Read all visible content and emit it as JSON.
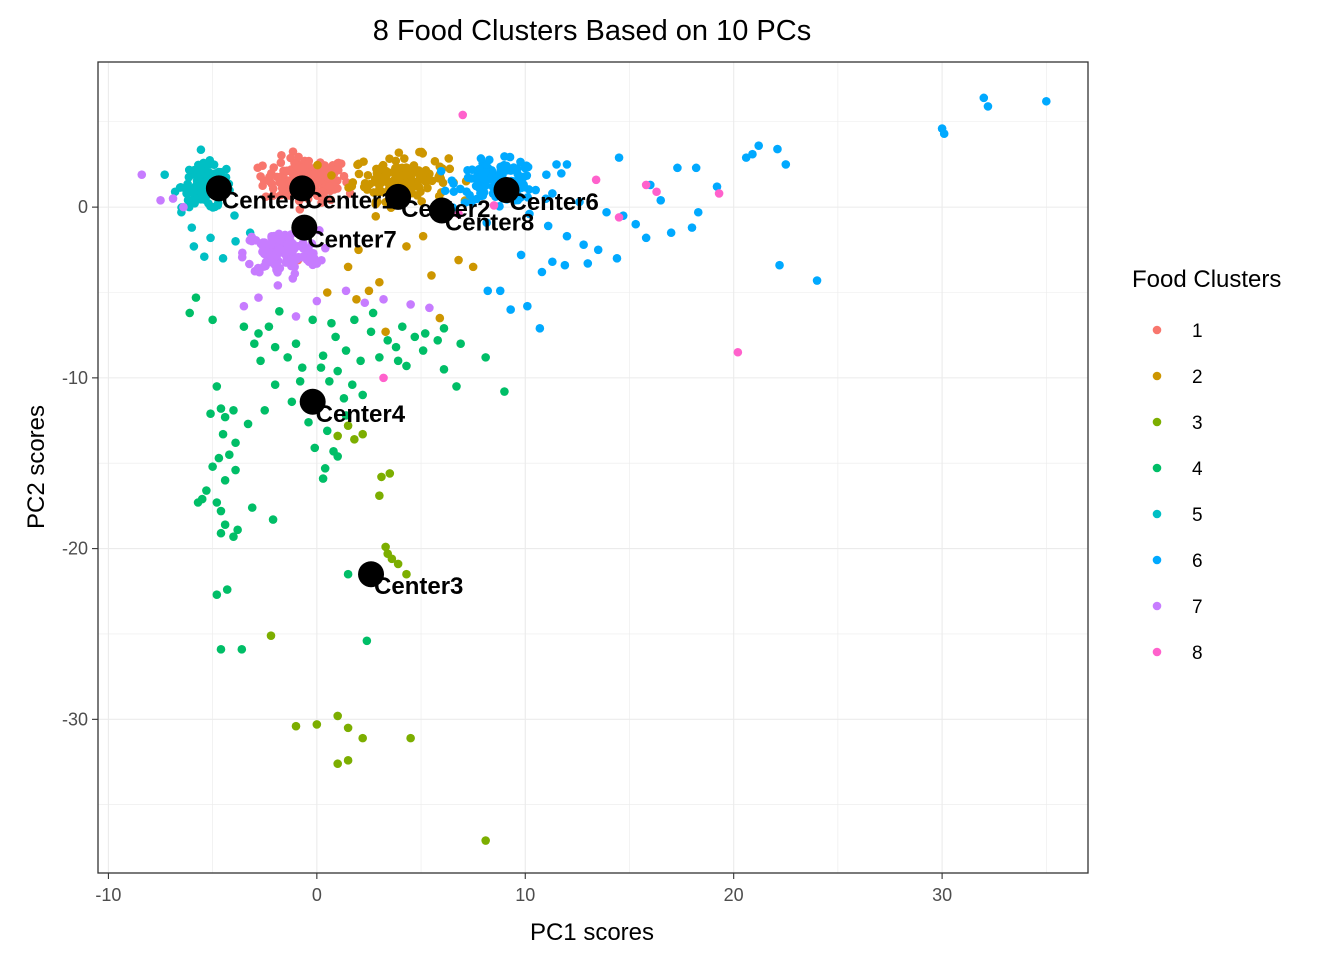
{
  "chart_data": {
    "type": "scatter",
    "title": "8 Food Clusters Based on 10 PCs",
    "xlabel": "PC1 scores",
    "ylabel": "PC2 scores",
    "xlim": [
      -10.5,
      37
    ],
    "ylim": [
      -39,
      8.5
    ],
    "x_ticks": [
      -10,
      0,
      10,
      20,
      30
    ],
    "y_ticks": [
      -30,
      -20,
      -10,
      0
    ],
    "x_tick_labels": [
      "-10",
      "0",
      "10",
      "20",
      "30"
    ],
    "y_tick_labels": [
      "-30",
      "-20",
      "-10",
      "0"
    ],
    "grid": true,
    "legend": {
      "title": "Food Clusters",
      "placement": "right",
      "entries": [
        {
          "label": "1",
          "color": "#F8766D"
        },
        {
          "label": "2",
          "color": "#CD9600"
        },
        {
          "label": "3",
          "color": "#7CAE00"
        },
        {
          "label": "4",
          "color": "#00BE67"
        },
        {
          "label": "5",
          "color": "#00BFC4"
        },
        {
          "label": "6",
          "color": "#00A9FF"
        },
        {
          "label": "7",
          "color": "#C77CFF"
        },
        {
          "label": "8",
          "color": "#FF61CC"
        }
      ]
    },
    "centers": [
      {
        "label": "Center1",
        "x": -0.7,
        "y": 1.1
      },
      {
        "label": "Center2",
        "x": 3.9,
        "y": 0.6
      },
      {
        "label": "Center3",
        "x": 2.6,
        "y": -21.5
      },
      {
        "label": "Center4",
        "x": -0.2,
        "y": -11.4
      },
      {
        "label": "Center5",
        "x": -4.7,
        "y": 1.1
      },
      {
        "label": "Center6",
        "x": 9.1,
        "y": 1.0
      },
      {
        "label": "Center7",
        "x": -0.6,
        "y": -1.2
      },
      {
        "label": "Center8",
        "x": 6.0,
        "y": -0.2
      }
    ],
    "series": [
      {
        "name": "1",
        "color": "#F8766D",
        "cluster": {
          "cx": -0.5,
          "cy": 1.6,
          "sx": 1.7,
          "sy": 1.1,
          "n": 140
        },
        "points": [
          [
            -2.7,
            1.8
          ],
          [
            1.6,
            0.8
          ],
          [
            -0.9,
            -3.1
          ]
        ]
      },
      {
        "name": "2",
        "color": "#CD9600",
        "cluster": {
          "cx": 4.0,
          "cy": 1.7,
          "sx": 1.9,
          "sy": 1.1,
          "n": 150
        },
        "points": [
          [
            1.5,
            -3.5
          ],
          [
            2.5,
            -4.9
          ],
          [
            3.3,
            -7.3
          ],
          [
            5.5,
            -4.0
          ],
          [
            7.5,
            -3.5
          ],
          [
            4.3,
            -2.3
          ],
          [
            6.8,
            -3.1
          ],
          [
            1.9,
            -5.4
          ],
          [
            3.0,
            -4.4
          ],
          [
            5.9,
            -6.5
          ],
          [
            0.5,
            -5.0
          ],
          [
            2.0,
            -2.5
          ],
          [
            5.1,
            -1.7
          ]
        ]
      },
      {
        "name": "3",
        "color": "#7CAE00",
        "points": [
          [
            1.5,
            -12.8
          ],
          [
            1.0,
            -13.4
          ],
          [
            1.8,
            -13.6
          ],
          [
            2.2,
            -13.3
          ],
          [
            3.1,
            -15.8
          ],
          [
            3.5,
            -15.6
          ],
          [
            3.0,
            -16.9
          ],
          [
            3.3,
            -19.9
          ],
          [
            3.4,
            -20.3
          ],
          [
            3.6,
            -20.6
          ],
          [
            3.9,
            -20.9
          ],
          [
            4.3,
            -21.5
          ],
          [
            -2.2,
            -25.1
          ],
          [
            1.0,
            -29.8
          ],
          [
            1.5,
            -30.5
          ],
          [
            0.0,
            -30.3
          ],
          [
            -1.0,
            -30.4
          ],
          [
            2.2,
            -31.1
          ],
          [
            4.5,
            -31.1
          ],
          [
            1.5,
            -32.4
          ],
          [
            1.0,
            -32.6
          ],
          [
            8.1,
            -37.1
          ]
        ]
      },
      {
        "name": "4",
        "color": "#00BE67",
        "points": [
          [
            -4.8,
            -10.5
          ],
          [
            -4.6,
            -11.8
          ],
          [
            -4.4,
            -12.3
          ],
          [
            -5.1,
            -12.1
          ],
          [
            -4.5,
            -13.3
          ],
          [
            -3.9,
            -13.8
          ],
          [
            -4.2,
            -14.5
          ],
          [
            -4.7,
            -14.7
          ],
          [
            -5.0,
            -15.2
          ],
          [
            -5.3,
            -16.6
          ],
          [
            -4.4,
            -16.0
          ],
          [
            -3.9,
            -15.4
          ],
          [
            -4.8,
            -17.3
          ],
          [
            -5.5,
            -17.1
          ],
          [
            -5.7,
            -17.3
          ],
          [
            -4.6,
            -17.8
          ],
          [
            -4.4,
            -18.6
          ],
          [
            -3.8,
            -18.9
          ],
          [
            -2.1,
            -18.3
          ],
          [
            -3.1,
            -17.6
          ],
          [
            -4.0,
            -11.9
          ],
          [
            -3.3,
            -12.7
          ],
          [
            -2.5,
            -11.9
          ],
          [
            -2.0,
            -10.4
          ],
          [
            -1.2,
            -11.4
          ],
          [
            -0.8,
            -10.2
          ],
          [
            0.2,
            -9.4
          ],
          [
            1.0,
            -9.6
          ],
          [
            0.6,
            -10.2
          ],
          [
            1.7,
            -10.4
          ],
          [
            1.3,
            -11.2
          ],
          [
            -0.4,
            -12.6
          ],
          [
            0.5,
            -13.1
          ],
          [
            -0.1,
            -14.1
          ],
          [
            0.8,
            -14.3
          ],
          [
            1.0,
            -14.6
          ],
          [
            0.4,
            -15.3
          ],
          [
            0.3,
            -15.9
          ],
          [
            -4.6,
            -19.1
          ],
          [
            -4.0,
            -19.3
          ],
          [
            -4.8,
            -22.7
          ],
          [
            -4.3,
            -22.4
          ],
          [
            -4.6,
            -25.9
          ],
          [
            -3.6,
            -25.9
          ],
          [
            2.4,
            -25.4
          ],
          [
            1.5,
            -21.5
          ],
          [
            -5.8,
            -5.3
          ],
          [
            -6.1,
            -6.2
          ],
          [
            -5.0,
            -6.6
          ],
          [
            -3.5,
            -7.0
          ],
          [
            -2.3,
            -7.0
          ],
          [
            -2.8,
            -7.4
          ],
          [
            -2.0,
            -8.2
          ],
          [
            -1.0,
            -8.0
          ],
          [
            0.3,
            -8.7
          ],
          [
            1.4,
            -8.4
          ],
          [
            0.9,
            -7.6
          ],
          [
            2.6,
            -7.3
          ],
          [
            3.8,
            -8.2
          ],
          [
            4.7,
            -7.6
          ],
          [
            5.8,
            -7.8
          ],
          [
            6.9,
            -8.0
          ],
          [
            4.3,
            -9.3
          ],
          [
            5.1,
            -8.4
          ],
          [
            4.1,
            -7.0
          ],
          [
            5.2,
            -7.4
          ],
          [
            6.1,
            -7.1
          ],
          [
            3.0,
            -8.8
          ],
          [
            2.1,
            -9.0
          ],
          [
            -1.8,
            -6.1
          ],
          [
            -0.2,
            -6.6
          ],
          [
            0.7,
            -6.8
          ],
          [
            1.8,
            -6.6
          ],
          [
            2.7,
            -6.2
          ],
          [
            3.4,
            -7.8
          ],
          [
            3.9,
            -9.0
          ],
          [
            8.1,
            -8.8
          ],
          [
            9.0,
            -10.8
          ],
          [
            6.7,
            -10.5
          ],
          [
            6.1,
            -9.5
          ],
          [
            2.2,
            -11.0
          ],
          [
            1.4,
            -12.2
          ],
          [
            -0.7,
            -9.4
          ],
          [
            -2.7,
            -9.0
          ],
          [
            -3.0,
            -8.0
          ],
          [
            -1.4,
            -8.8
          ]
        ]
      },
      {
        "name": "5",
        "color": "#00BFC4",
        "cluster": {
          "cx": -5.3,
          "cy": 1.2,
          "sx": 1.0,
          "sy": 1.1,
          "n": 120
        },
        "points": [
          [
            -6.8,
            0.9
          ],
          [
            -7.3,
            1.9
          ],
          [
            -6.5,
            -0.3
          ],
          [
            -5.1,
            -1.8
          ],
          [
            -5.9,
            -2.3
          ],
          [
            -4.5,
            -3.0
          ],
          [
            -3.9,
            -2.0
          ],
          [
            -5.4,
            -2.9
          ],
          [
            -6.0,
            -1.2
          ],
          [
            -3.2,
            -1.5
          ]
        ]
      },
      {
        "name": "6",
        "color": "#00A9FF",
        "cluster": {
          "cx": 8.7,
          "cy": 1.5,
          "sx": 1.6,
          "sy": 1.0,
          "n": 130
        },
        "points": [
          [
            11.5,
            2.5
          ],
          [
            12.0,
            2.5
          ],
          [
            14.5,
            2.9
          ],
          [
            16.0,
            1.3
          ],
          [
            17.3,
            2.3
          ],
          [
            18.2,
            2.3
          ],
          [
            19.2,
            1.2
          ],
          [
            20.6,
            2.9
          ],
          [
            20.9,
            3.1
          ],
          [
            21.2,
            3.6
          ],
          [
            22.1,
            3.4
          ],
          [
            22.5,
            2.5
          ],
          [
            10.5,
            1.0
          ],
          [
            11.3,
            0.8
          ],
          [
            12.6,
            0.3
          ],
          [
            13.9,
            -0.3
          ],
          [
            14.7,
            -0.5
          ],
          [
            15.3,
            -1.0
          ],
          [
            15.8,
            -1.8
          ],
          [
            17.0,
            -1.5
          ],
          [
            18.0,
            -1.2
          ],
          [
            10.2,
            -0.4
          ],
          [
            11.1,
            -1.1
          ],
          [
            12.0,
            -1.7
          ],
          [
            12.8,
            -2.2
          ],
          [
            13.5,
            -2.5
          ],
          [
            14.4,
            -3.0
          ],
          [
            11.3,
            -3.2
          ],
          [
            10.8,
            -3.8
          ],
          [
            11.9,
            -3.4
          ],
          [
            8.2,
            -4.9
          ],
          [
            8.8,
            -4.9
          ],
          [
            9.3,
            -6.0
          ],
          [
            10.1,
            -5.8
          ],
          [
            10.7,
            -7.1
          ],
          [
            9.8,
            -2.8
          ],
          [
            13.0,
            -3.3
          ],
          [
            16.5,
            0.4
          ],
          [
            18.3,
            -0.3
          ],
          [
            22.2,
            -3.4
          ],
          [
            24.0,
            -4.3
          ],
          [
            30.0,
            4.6
          ],
          [
            30.1,
            4.3
          ],
          [
            32.0,
            6.4
          ],
          [
            32.2,
            5.9
          ],
          [
            35.0,
            6.2
          ]
        ]
      },
      {
        "name": "7",
        "color": "#C77CFF",
        "cluster": {
          "cx": -1.7,
          "cy": -2.7,
          "sx": 1.5,
          "sy": 1.1,
          "n": 120
        },
        "points": [
          [
            -8.4,
            1.9
          ],
          [
            -7.5,
            0.4
          ],
          [
            -6.9,
            0.5
          ],
          [
            -6.4,
            0.0
          ],
          [
            -2.8,
            -5.3
          ],
          [
            -1.0,
            -6.4
          ],
          [
            0.0,
            -5.5
          ],
          [
            2.3,
            -5.6
          ],
          [
            3.2,
            -5.4
          ],
          [
            4.5,
            -5.7
          ],
          [
            5.4,
            -5.9
          ],
          [
            -3.5,
            -5.8
          ],
          [
            1.4,
            -4.9
          ]
        ]
      },
      {
        "name": "8",
        "color": "#FF61CC",
        "points": [
          [
            7.0,
            5.4
          ],
          [
            13.4,
            1.6
          ],
          [
            15.8,
            1.3
          ],
          [
            16.3,
            0.9
          ],
          [
            19.3,
            0.8
          ],
          [
            14.5,
            -0.6
          ],
          [
            20.2,
            -8.5
          ],
          [
            3.2,
            -10.0
          ],
          [
            6.8,
            -0.4
          ],
          [
            8.5,
            0.1
          ]
        ]
      }
    ]
  }
}
